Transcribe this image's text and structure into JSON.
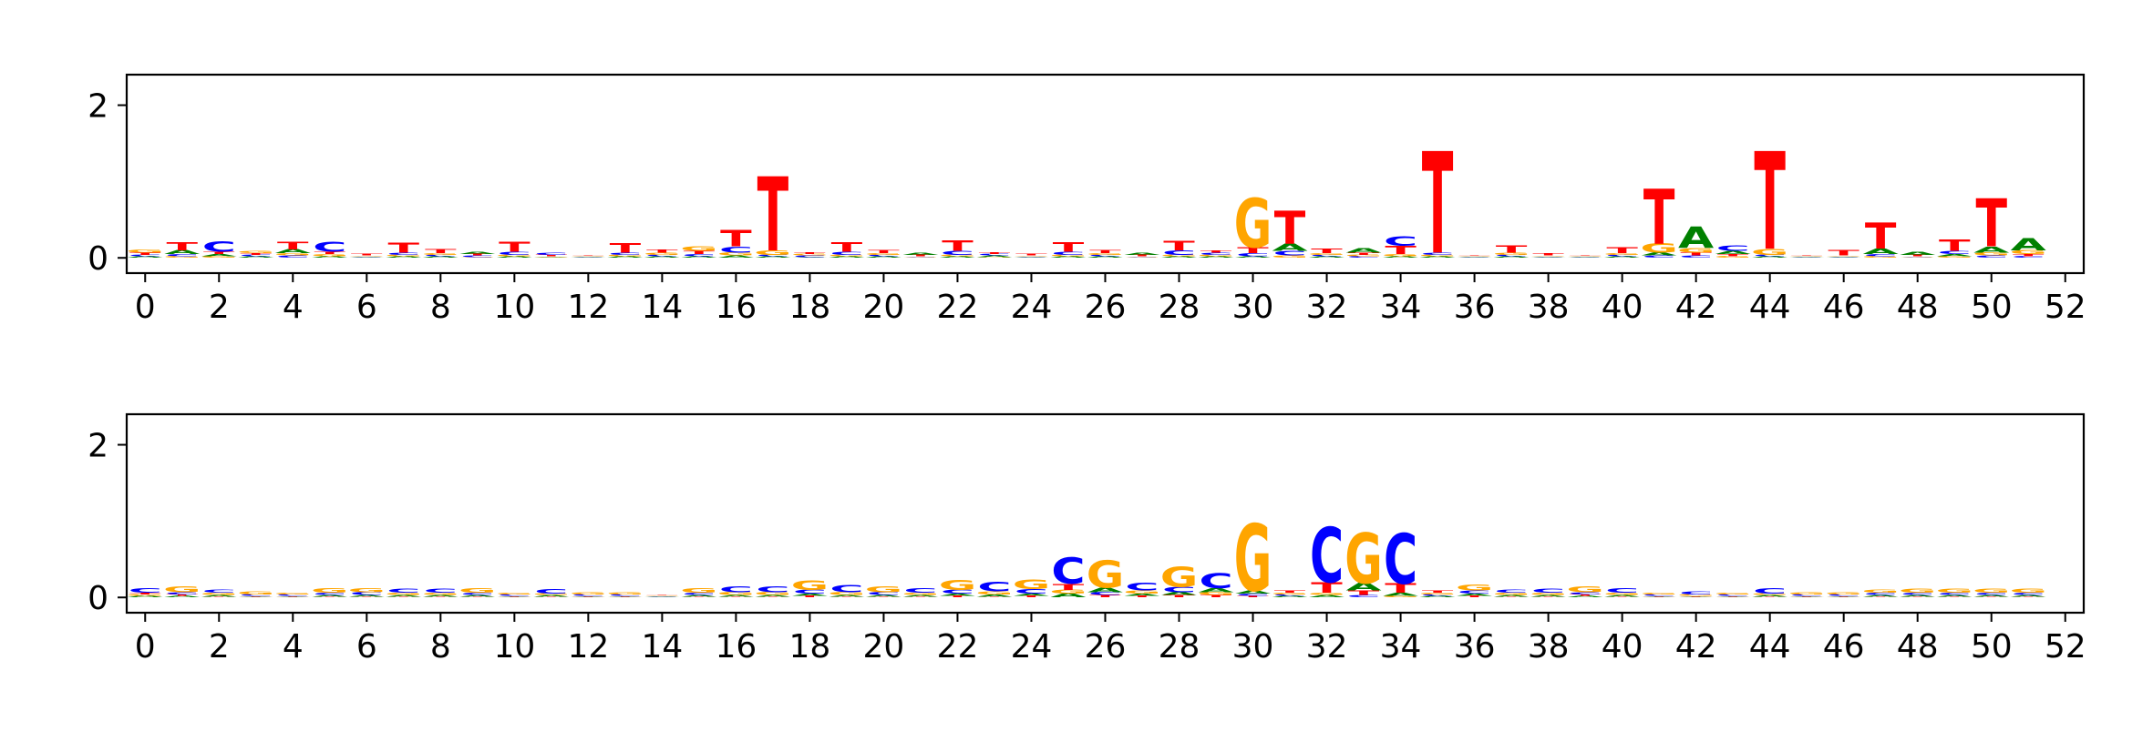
{
  "chart_data": [
    {
      "type": "sequence-logo",
      "alphabet": [
        "A",
        "C",
        "G",
        "T"
      ],
      "colors": {
        "A": "#008000",
        "C": "#0000ff",
        "G": "#ffa500",
        "T": "#ff0000"
      },
      "x": [
        0,
        1,
        2,
        3,
        4,
        5,
        6,
        7,
        8,
        9,
        10,
        11,
        12,
        13,
        14,
        15,
        16,
        17,
        18,
        19,
        20,
        21,
        22,
        23,
        24,
        25,
        26,
        27,
        28,
        29,
        30,
        31,
        32,
        33,
        34,
        35,
        36,
        37,
        38,
        39,
        40,
        41,
        42,
        43,
        44,
        45,
        46,
        47,
        48,
        49,
        50,
        51
      ],
      "xticks": [
        0,
        2,
        4,
        6,
        8,
        10,
        12,
        14,
        16,
        18,
        20,
        22,
        24,
        26,
        28,
        30,
        32,
        34,
        36,
        38,
        40,
        42,
        44,
        46,
        48,
        50,
        52
      ],
      "yticks": [
        0,
        2
      ],
      "xlim": [
        -0.5,
        52.5
      ],
      "ylim": [
        -0.2,
        2.4
      ],
      "positions": [
        {
          "A": 0.02,
          "C": 0.02,
          "G": 0.04,
          "T": 0.03
        },
        {
          "A": 0.05,
          "C": 0.03,
          "G": 0.02,
          "T": 0.11
        },
        {
          "A": 0.03,
          "C": 0.14,
          "G": 0.02,
          "T": 0.03
        },
        {
          "A": 0.02,
          "C": 0.02,
          "G": 0.03,
          "T": 0.02
        },
        {
          "A": 0.05,
          "C": 0.03,
          "G": 0.03,
          "T": 0.1
        },
        {
          "A": 0.02,
          "C": 0.13,
          "G": 0.03,
          "T": 0.03
        },
        {
          "A": 0.01,
          "C": 0.01,
          "G": 0.01,
          "T": 0.02
        },
        {
          "A": 0.02,
          "C": 0.03,
          "G": 0.02,
          "T": 0.13
        },
        {
          "A": 0.02,
          "C": 0.02,
          "G": 0.02,
          "T": 0.05
        },
        {
          "A": 0.03,
          "C": 0.02,
          "G": 0.01,
          "T": 0.02
        },
        {
          "A": 0.02,
          "C": 0.04,
          "G": 0.02,
          "T": 0.13
        },
        {
          "A": 0.01,
          "C": 0.03,
          "G": 0.01,
          "T": 0.02
        },
        {
          "A": 0.01,
          "C": 0.01,
          "G": 0.01,
          "T": 0.01
        },
        {
          "A": 0.02,
          "C": 0.03,
          "G": 0.02,
          "T": 0.12
        },
        {
          "A": 0.02,
          "C": 0.02,
          "G": 0.03,
          "T": 0.04
        },
        {
          "A": 0.02,
          "C": 0.03,
          "G": 0.06,
          "T": 0.04
        },
        {
          "A": 0.03,
          "C": 0.08,
          "G": 0.04,
          "T": 0.22
        },
        {
          "A": 0.02,
          "C": 0.02,
          "G": 0.06,
          "T": 0.97
        },
        {
          "A": 0.01,
          "C": 0.02,
          "G": 0.02,
          "T": 0.02
        },
        {
          "A": 0.02,
          "C": 0.04,
          "G": 0.02,
          "T": 0.12
        },
        {
          "A": 0.02,
          "C": 0.02,
          "G": 0.02,
          "T": 0.04
        },
        {
          "A": 0.03,
          "C": 0.01,
          "G": 0.01,
          "T": 0.02
        },
        {
          "A": 0.02,
          "C": 0.05,
          "G": 0.02,
          "T": 0.14
        },
        {
          "A": 0.02,
          "C": 0.02,
          "G": 0.01,
          "T": 0.02
        },
        {
          "A": 0.01,
          "C": 0.01,
          "G": 0.01,
          "T": 0.02
        },
        {
          "A": 0.02,
          "C": 0.04,
          "G": 0.02,
          "T": 0.12
        },
        {
          "A": 0.02,
          "C": 0.02,
          "G": 0.02,
          "T": 0.04
        },
        {
          "A": 0.03,
          "C": 0.01,
          "G": 0.01,
          "T": 0.02
        },
        {
          "A": 0.02,
          "C": 0.06,
          "G": 0.02,
          "T": 0.12
        },
        {
          "A": 0.02,
          "C": 0.03,
          "G": 0.02,
          "T": 0.03
        },
        {
          "A": 0.02,
          "C": 0.04,
          "G": 0.64,
          "T": 0.08
        },
        {
          "A": 0.09,
          "C": 0.06,
          "G": 0.03,
          "T": 0.43
        },
        {
          "A": 0.02,
          "C": 0.02,
          "G": 0.02,
          "T": 0.06
        },
        {
          "A": 0.06,
          "C": 0.02,
          "G": 0.02,
          "T": 0.03
        },
        {
          "A": 0.02,
          "C": 0.12,
          "G": 0.03,
          "T": 0.11
        },
        {
          "A": 0.02,
          "C": 0.03,
          "G": 0.02,
          "T": 1.33
        },
        {
          "A": 0.01,
          "C": 0.01,
          "G": 0.01,
          "T": 0.01
        },
        {
          "A": 0.02,
          "C": 0.02,
          "G": 0.03,
          "T": 0.09
        },
        {
          "A": 0.01,
          "C": 0.01,
          "G": 0.01,
          "T": 0.03
        },
        {
          "A": 0.01,
          "C": 0.01,
          "G": 0.01,
          "T": 0.01
        },
        {
          "A": 0.02,
          "C": 0.02,
          "G": 0.02,
          "T": 0.08
        },
        {
          "A": 0.04,
          "C": 0.03,
          "G": 0.12,
          "T": 0.72
        },
        {
          "A": 0.28,
          "C": 0.03,
          "G": 0.06,
          "T": 0.04
        },
        {
          "A": 0.04,
          "C": 0.07,
          "G": 0.02,
          "T": 0.03
        },
        {
          "A": 0.02,
          "C": 0.02,
          "G": 0.08,
          "T": 1.28
        },
        {
          "A": 0.01,
          "C": 0.01,
          "G": 0.01,
          "T": 0.01
        },
        {
          "A": 0.01,
          "C": 0.01,
          "G": 0.01,
          "T": 0.07
        },
        {
          "A": 0.07,
          "C": 0.03,
          "G": 0.02,
          "T": 0.34
        },
        {
          "A": 0.04,
          "C": 0.01,
          "G": 0.01,
          "T": 0.02
        },
        {
          "A": 0.03,
          "C": 0.04,
          "G": 0.02,
          "T": 0.15
        },
        {
          "A": 0.08,
          "C": 0.03,
          "G": 0.04,
          "T": 0.63
        },
        {
          "A": 0.16,
          "C": 0.02,
          "G": 0.05,
          "T": 0.03
        }
      ]
    },
    {
      "type": "sequence-logo",
      "alphabet": [
        "A",
        "C",
        "G",
        "T"
      ],
      "colors": {
        "A": "#008000",
        "C": "#0000ff",
        "G": "#ffa500",
        "T": "#ff0000"
      },
      "x": [
        0,
        1,
        2,
        3,
        4,
        5,
        6,
        7,
        8,
        9,
        10,
        11,
        12,
        13,
        14,
        15,
        16,
        17,
        18,
        19,
        20,
        21,
        22,
        23,
        24,
        25,
        26,
        27,
        28,
        29,
        30,
        31,
        32,
        33,
        34,
        35,
        36,
        37,
        38,
        39,
        40,
        41,
        42,
        43,
        44,
        45,
        46,
        47,
        48,
        49,
        50,
        51
      ],
      "xticks": [
        0,
        2,
        4,
        6,
        8,
        10,
        12,
        14,
        16,
        18,
        20,
        22,
        24,
        26,
        28,
        30,
        32,
        34,
        36,
        38,
        40,
        42,
        44,
        46,
        48,
        50,
        52
      ],
      "yticks": [
        0,
        2
      ],
      "xlim": [
        -0.5,
        52.5
      ],
      "ylim": [
        -0.2,
        2.4
      ],
      "positions": [
        {
          "A": 0.02,
          "C": 0.06,
          "G": 0.02,
          "T": 0.02
        },
        {
          "A": 0.02,
          "C": 0.03,
          "G": 0.08,
          "T": 0.02
        },
        {
          "A": 0.02,
          "C": 0.04,
          "G": 0.03,
          "T": 0.01
        },
        {
          "A": 0.01,
          "C": 0.02,
          "G": 0.04,
          "T": 0.01
        },
        {
          "A": 0.01,
          "C": 0.02,
          "G": 0.02,
          "T": 0.01
        },
        {
          "A": 0.02,
          "C": 0.03,
          "G": 0.06,
          "T": 0.01
        },
        {
          "A": 0.02,
          "C": 0.04,
          "G": 0.05,
          "T": 0.01
        },
        {
          "A": 0.02,
          "C": 0.05,
          "G": 0.03,
          "T": 0.01
        },
        {
          "A": 0.02,
          "C": 0.05,
          "G": 0.03,
          "T": 0.01
        },
        {
          "A": 0.02,
          "C": 0.03,
          "G": 0.06,
          "T": 0.01
        },
        {
          "A": 0.01,
          "C": 0.02,
          "G": 0.02,
          "T": 0.01
        },
        {
          "A": 0.02,
          "C": 0.06,
          "G": 0.02,
          "T": 0.01
        },
        {
          "A": 0.01,
          "C": 0.02,
          "G": 0.03,
          "T": 0.01
        },
        {
          "A": 0.01,
          "C": 0.02,
          "G": 0.03,
          "T": 0.01
        },
        {
          "A": 0.01,
          "C": 0.01,
          "G": 0.01,
          "T": 0.01
        },
        {
          "A": 0.02,
          "C": 0.03,
          "G": 0.06,
          "T": 0.01
        },
        {
          "A": 0.02,
          "C": 0.08,
          "G": 0.04,
          "T": 0.01
        },
        {
          "A": 0.02,
          "C": 0.08,
          "G": 0.04,
          "T": 0.01
        },
        {
          "A": 0.03,
          "C": 0.05,
          "G": 0.12,
          "T": 0.02
        },
        {
          "A": 0.02,
          "C": 0.09,
          "G": 0.04,
          "T": 0.01
        },
        {
          "A": 0.02,
          "C": 0.04,
          "G": 0.08,
          "T": 0.01
        },
        {
          "A": 0.02,
          "C": 0.06,
          "G": 0.03,
          "T": 0.01
        },
        {
          "A": 0.03,
          "C": 0.05,
          "G": 0.13,
          "T": 0.02
        },
        {
          "A": 0.03,
          "C": 0.12,
          "G": 0.04,
          "T": 0.01
        },
        {
          "A": 0.03,
          "C": 0.06,
          "G": 0.12,
          "T": 0.02
        },
        {
          "A": 0.05,
          "C": 0.34,
          "G": 0.05,
          "T": 0.08
        },
        {
          "A": 0.06,
          "C": 0.04,
          "G": 0.36,
          "T": 0.03
        },
        {
          "A": 0.03,
          "C": 0.1,
          "G": 0.04,
          "T": 0.02
        },
        {
          "A": 0.04,
          "C": 0.07,
          "G": 0.26,
          "T": 0.03
        },
        {
          "A": 0.05,
          "C": 0.19,
          "G": 0.04,
          "T": 0.03
        },
        {
          "A": 0.04,
          "C": 0.03,
          "G": 0.88,
          "T": 0.02
        },
        {
          "A": 0.02,
          "C": 0.02,
          "G": 0.02,
          "T": 0.03
        },
        {
          "A": 0.03,
          "C": 0.72,
          "G": 0.03,
          "T": 0.14
        },
        {
          "A": 0.1,
          "C": 0.03,
          "G": 0.66,
          "T": 0.06
        },
        {
          "A": 0.04,
          "C": 0.66,
          "G": 0.02,
          "T": 0.12
        },
        {
          "A": 0.02,
          "C": 0.02,
          "G": 0.02,
          "T": 0.03
        },
        {
          "A": 0.03,
          "C": 0.04,
          "G": 0.08,
          "T": 0.02
        },
        {
          "A": 0.02,
          "C": 0.04,
          "G": 0.03,
          "T": 0.01
        },
        {
          "A": 0.02,
          "C": 0.05,
          "G": 0.03,
          "T": 0.01
        },
        {
          "A": 0.02,
          "C": 0.03,
          "G": 0.08,
          "T": 0.02
        },
        {
          "A": 0.02,
          "C": 0.06,
          "G": 0.03,
          "T": 0.01
        },
        {
          "A": 0.01,
          "C": 0.02,
          "G": 0.02,
          "T": 0.01
        },
        {
          "A": 0.01,
          "C": 0.04,
          "G": 0.02,
          "T": 0.01
        },
        {
          "A": 0.01,
          "C": 0.02,
          "G": 0.02,
          "T": 0.01
        },
        {
          "A": 0.02,
          "C": 0.07,
          "G": 0.02,
          "T": 0.01
        },
        {
          "A": 0.01,
          "C": 0.02,
          "G": 0.03,
          "T": 0.01
        },
        {
          "A": 0.01,
          "C": 0.02,
          "G": 0.03,
          "T": 0.01
        },
        {
          "A": 0.02,
          "C": 0.03,
          "G": 0.04,
          "T": 0.01
        },
        {
          "A": 0.02,
          "C": 0.03,
          "G": 0.05,
          "T": 0.01
        },
        {
          "A": 0.02,
          "C": 0.03,
          "G": 0.05,
          "T": 0.01
        },
        {
          "A": 0.02,
          "C": 0.03,
          "G": 0.05,
          "T": 0.01
        },
        {
          "A": 0.02,
          "C": 0.03,
          "G": 0.05,
          "T": 0.01
        }
      ]
    }
  ]
}
